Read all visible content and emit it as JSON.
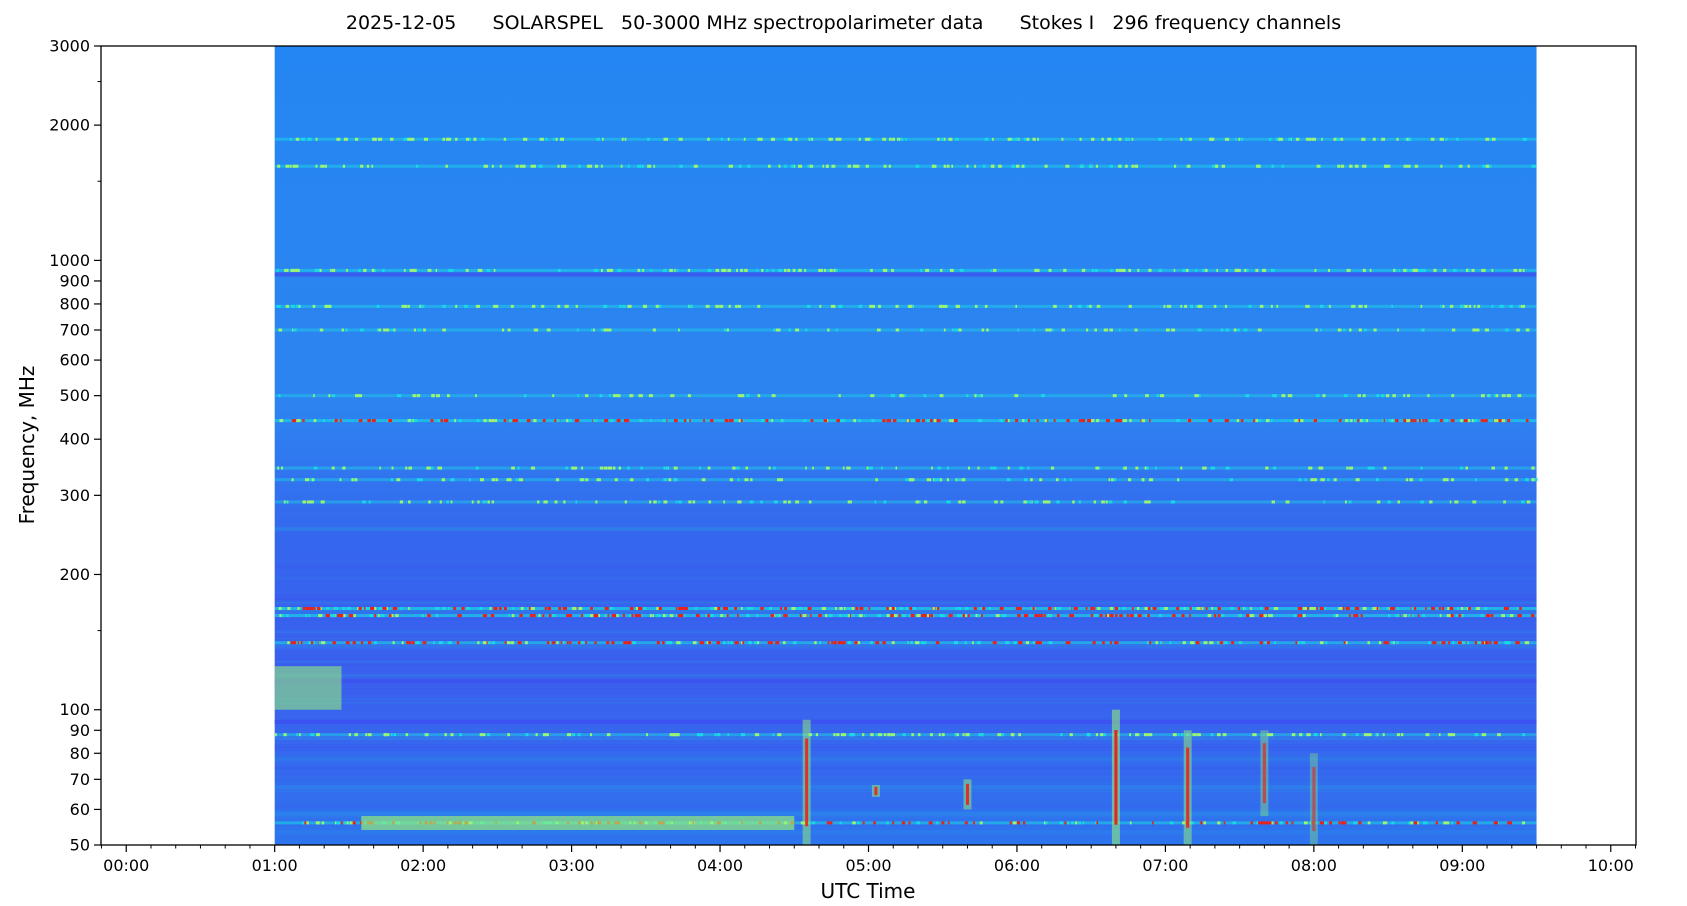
{
  "title": "2025-12-05      SOLARSPEL   50-3000 MHz spectropolarimeter data      Stokes I   296 frequency channels",
  "chart_data": {
    "type": "heatmap",
    "title": "2025-12-05      SOLARSPEL   50-3000 MHz spectropolarimeter data      Stokes I   296 frequency channels",
    "date": "2025-12-05",
    "instrument": "SOLARSPEL",
    "band": "50-3000 MHz spectropolarimeter data",
    "polarization": "Stokes I",
    "channel_count": "296 frequency channels",
    "xlabel": "UTC Time",
    "ylabel": "Frequency, MHz",
    "x_ticks": [
      "00:00",
      "01:00",
      "02:00",
      "03:00",
      "04:00",
      "05:00",
      "06:00",
      "07:00",
      "08:00",
      "09:00",
      "10:00"
    ],
    "x_range_hours": [
      -0.17,
      10.17
    ],
    "data_span_utc": [
      "01:00",
      "09:30"
    ],
    "y_scale": "log",
    "y_range_mhz": [
      50,
      3000
    ],
    "y_ticks": [
      50,
      60,
      70,
      80,
      90,
      100,
      200,
      300,
      400,
      500,
      600,
      700,
      800,
      900,
      1000,
      2000,
      3000
    ],
    "colormap": "jet",
    "colors": {
      "background": "#2a86f2",
      "low": "#3f4cf0",
      "mid": "#19d8e6",
      "high": "#9af572",
      "peak": "#e8231d"
    },
    "rfi_lines_mhz": [
      {
        "f": 1860,
        "strength": 0.5
      },
      {
        "f": 1620,
        "strength": 0.45
      },
      {
        "f": 950,
        "strength": 0.6
      },
      {
        "f": 930,
        "strength": -0.5
      },
      {
        "f": 790,
        "strength": 0.4
      },
      {
        "f": 700,
        "strength": 0.3
      },
      {
        "f": 500,
        "strength": 0.25
      },
      {
        "f": 440,
        "strength": 0.9
      },
      {
        "f": 345,
        "strength": 0.3
      },
      {
        "f": 325,
        "strength": 0.3
      },
      {
        "f": 290,
        "strength": 0.3
      },
      {
        "f": 168,
        "strength": 1.0
      },
      {
        "f": 162,
        "strength": 1.0
      },
      {
        "f": 141,
        "strength": 0.8
      },
      {
        "f": 116,
        "strength": -0.5
      },
      {
        "f": 94,
        "strength": -0.6
      },
      {
        "f": 88,
        "strength": 0.5
      },
      {
        "f": 56,
        "strength": 0.7
      }
    ],
    "bursts": [
      {
        "t": "04:35",
        "f_range": [
          50,
          95
        ],
        "strength": 0.9
      },
      {
        "t": "05:03",
        "f_range": [
          64,
          68
        ],
        "strength": 0.9
      },
      {
        "t": "05:40",
        "f_range": [
          60,
          70
        ],
        "strength": 0.9
      },
      {
        "t": "06:40",
        "f_range": [
          50,
          100
        ],
        "strength": 1.0
      },
      {
        "t": "07:09",
        "f_range": [
          50,
          90
        ],
        "strength": 0.9
      },
      {
        "t": "07:40",
        "f_range": [
          58,
          90
        ],
        "strength": 0.7
      },
      {
        "t": "08:00",
        "f_range": [
          50,
          80
        ],
        "strength": 0.6
      }
    ]
  }
}
